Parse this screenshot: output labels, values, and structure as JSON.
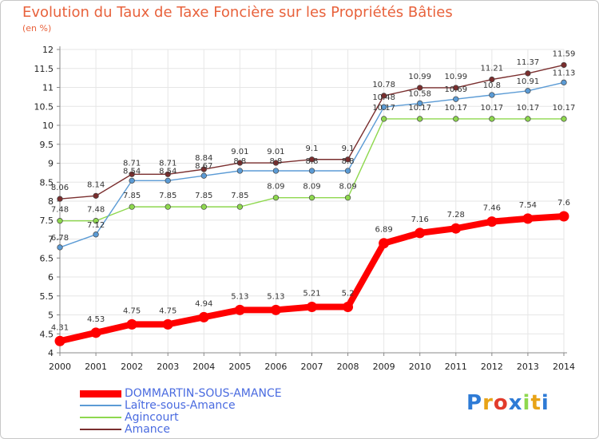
{
  "chart_data": {
    "type": "line",
    "title": "Evolution du Taux de Taxe Foncière sur les Propriétés Bâties",
    "subtitle": "(en %)",
    "xlabel": "",
    "ylabel": "",
    "x": [
      "2000",
      "2001",
      "2002",
      "2003",
      "2004",
      "2005",
      "2006",
      "2007",
      "2008",
      "2009",
      "2010",
      "2011",
      "2012",
      "2013",
      "2014"
    ],
    "ylim": [
      4,
      12
    ],
    "yticks": [
      "4",
      "4.5",
      "5",
      "5.5",
      "6",
      "6.5",
      "7",
      "7.5",
      "8",
      "8.5",
      "9",
      "9.5",
      "10",
      "10.5",
      "11",
      "11.5",
      "12"
    ],
    "grid": true,
    "series": [
      {
        "name": "DOMMARTIN-SOUS-AMANCE",
        "color": "#ff0000",
        "values": [
          4.31,
          4.53,
          4.75,
          4.75,
          4.94,
          5.13,
          5.13,
          5.21,
          5.21,
          6.89,
          7.16,
          7.28,
          7.46,
          7.54,
          7.6
        ],
        "labels": [
          "4.31",
          "4.53",
          "4.75",
          "4.75",
          "4.94",
          "5.13",
          "5.13",
          "5.21",
          "5.2",
          "6.89",
          "7.16",
          "7.28",
          "7.46",
          "7.54",
          "7.6"
        ]
      },
      {
        "name": "Laître-sous-Amance",
        "color": "#5b9bd5",
        "values": [
          6.78,
          7.12,
          8.54,
          8.54,
          8.67,
          8.8,
          8.8,
          8.8,
          8.8,
          10.48,
          10.58,
          10.69,
          10.8,
          10.91,
          11.13
        ],
        "labels": [
          "6.78",
          "7.12",
          "8.54",
          "8.54",
          "8.67",
          "8.8",
          "8.8",
          "8.8",
          "8.8",
          "10.48",
          "10.58",
          "10.69",
          "10.8",
          "10.91",
          "11.13"
        ]
      },
      {
        "name": "Agincourt",
        "color": "#8ed84e",
        "values": [
          7.48,
          7.48,
          7.85,
          7.85,
          7.85,
          7.85,
          8.09,
          8.09,
          8.09,
          10.17,
          10.17,
          10.17,
          10.17,
          10.17,
          10.17
        ],
        "labels": [
          "7.48",
          "7.48",
          "7.85",
          "7.85",
          "7.85",
          "7.85",
          "8.09",
          "8.09",
          "8.09",
          "10.17",
          "10.17",
          "10.17",
          "10.17",
          "10.17",
          "10.17"
        ]
      },
      {
        "name": "Amance",
        "color": "#7a2e2e",
        "values": [
          8.06,
          8.14,
          8.71,
          8.71,
          8.84,
          9.01,
          9.01,
          9.1,
          9.1,
          10.78,
          10.99,
          10.99,
          11.21,
          11.37,
          11.59
        ],
        "labels": [
          "8.06",
          "8.14",
          "8.71",
          "8.71",
          "8.84",
          "9.01",
          "9.01",
          "9.1",
          "9.1",
          "10.78",
          "10.99",
          "10.99",
          "11.21",
          "11.37",
          "11.59"
        ]
      }
    ],
    "legend_position": "bottom-left"
  },
  "logo": {
    "letters": [
      "P",
      "r",
      "o",
      "x",
      "i",
      "t",
      "i"
    ],
    "colors": [
      "#2e7bd6",
      "#e8a317",
      "#e23b2b",
      "#2e7bd6",
      "#8ed84e",
      "#e8a317",
      "#2e7bd6"
    ]
  }
}
